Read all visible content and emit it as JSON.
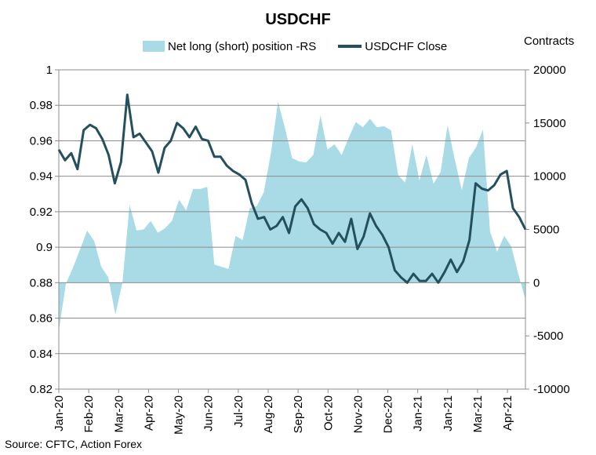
{
  "chart_data": {
    "type": "line",
    "title": "USDCHF",
    "source": "Source: CFTC, Action Forex",
    "left_axis": {
      "ylim": [
        0.82,
        1.0
      ],
      "ticks": [
        "0.82",
        "0.84",
        "0.86",
        "0.88",
        "0.9",
        "0.92",
        "0.94",
        "0.96",
        "0.98",
        "1"
      ]
    },
    "right_axis": {
      "label": "Contracts",
      "ylim": [
        -10000,
        20000
      ],
      "ticks": [
        "-10000",
        "-5000",
        "0",
        "5000",
        "10000",
        "15000",
        "20000"
      ]
    },
    "x_labels": [
      "Jan-20",
      "Feb-20",
      "Mar-20",
      "Apr-20",
      "May-20",
      "Jun-20",
      "Jul-20",
      "Aug-20",
      "Sep-20",
      "Oct-20",
      "Nov-20",
      "Dec-20",
      "Jan-21",
      "Jan-21",
      "Mar-21",
      "Apr-21"
    ],
    "grid": true,
    "legend_position": "top",
    "series": [
      {
        "name": "Net long (short) position -RS",
        "type": "area",
        "axis": "right",
        "color": "#a9dbe6",
        "values": [
          -4500,
          -100,
          1400,
          3100,
          4900,
          3900,
          1500,
          500,
          -3000,
          0,
          7300,
          4900,
          5000,
          5800,
          4700,
          5100,
          5800,
          7800,
          6800,
          8800,
          8800,
          9000,
          1700,
          1500,
          1300,
          4400,
          4000,
          7000,
          7200,
          8500,
          12200,
          17000,
          14500,
          11700,
          11400,
          11300,
          12000,
          15700,
          12500,
          13000,
          12000,
          13600,
          15100,
          14600,
          15400,
          14600,
          14700,
          14300,
          10100,
          9400,
          13000,
          9600,
          12000,
          9300,
          10400,
          14800,
          11600,
          8700,
          11700,
          12700,
          14400,
          4800,
          2900,
          4400,
          3400,
          800,
          -1600
        ]
      },
      {
        "name": "USDCHF Close",
        "type": "line",
        "axis": "left",
        "color": "#244f5e",
        "values": [
          0.955,
          0.949,
          0.953,
          0.944,
          0.966,
          0.969,
          0.967,
          0.961,
          0.952,
          0.936,
          0.948,
          0.986,
          0.962,
          0.964,
          0.959,
          0.954,
          0.942,
          0.956,
          0.96,
          0.97,
          0.967,
          0.962,
          0.968,
          0.961,
          0.96,
          0.951,
          0.951,
          0.946,
          0.943,
          0.941,
          0.938,
          0.925,
          0.916,
          0.917,
          0.91,
          0.912,
          0.917,
          0.908,
          0.923,
          0.927,
          0.922,
          0.913,
          0.91,
          0.908,
          0.902,
          0.908,
          0.903,
          0.916,
          0.899,
          0.906,
          0.919,
          0.912,
          0.907,
          0.9,
          0.887,
          0.883,
          0.88,
          0.885,
          0.881,
          0.881,
          0.885,
          0.88,
          0.886,
          0.893,
          0.886,
          0.892,
          0.904,
          0.936,
          0.933,
          0.932,
          0.935,
          0.941,
          0.943,
          0.922,
          0.917,
          0.91
        ]
      }
    ]
  }
}
